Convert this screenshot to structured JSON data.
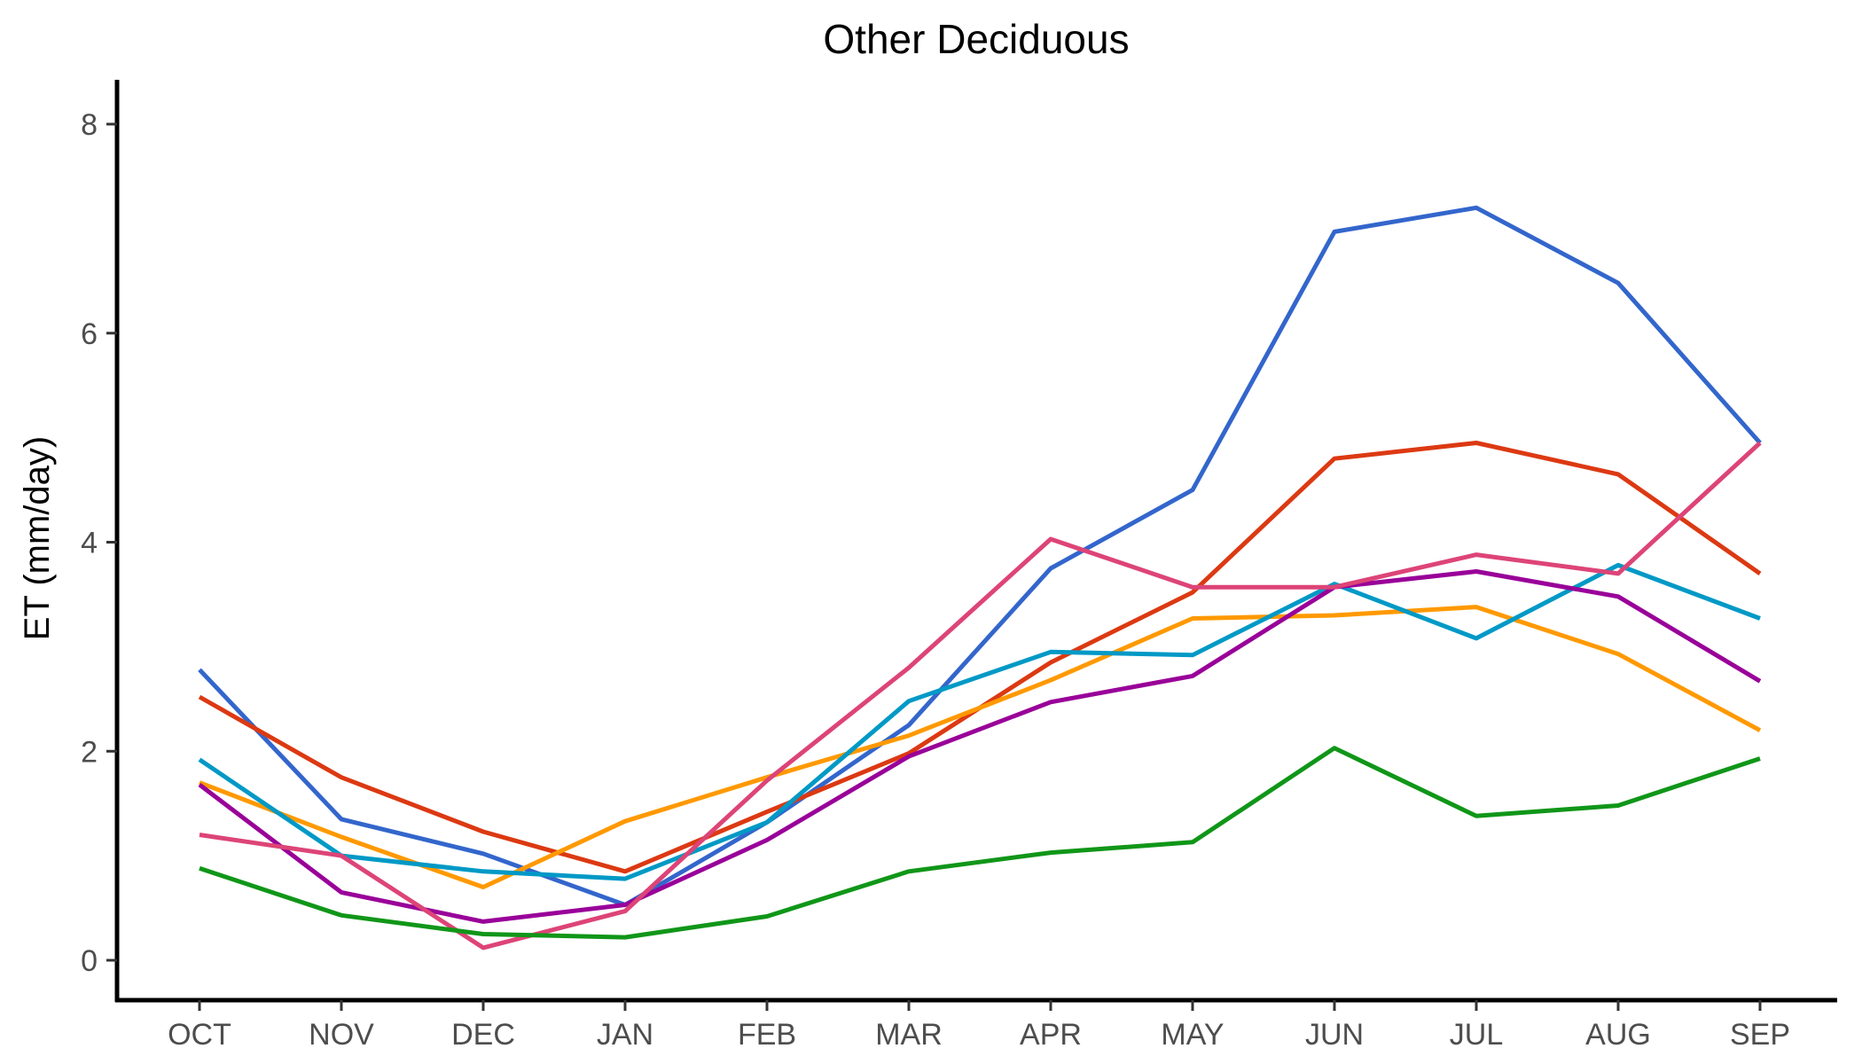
{
  "chart_data": {
    "type": "line",
    "title": "Other Deciduous",
    "xlabel": "",
    "ylabel": "ET (mm/day)",
    "ylim": [
      -0.3,
      8.4
    ],
    "yticks": [
      0,
      2,
      4,
      6,
      8
    ],
    "grid": false,
    "legend": "none",
    "categories": [
      "OCT",
      "NOV",
      "DEC",
      "JAN",
      "FEB",
      "MAR",
      "APR",
      "MAY",
      "JUN",
      "JUL",
      "AUG",
      "SEP"
    ],
    "series": [
      {
        "color": "#3366cc",
        "values": [
          2.78,
          1.35,
          1.02,
          0.53,
          1.32,
          2.25,
          3.75,
          4.5,
          6.97,
          7.2,
          6.48,
          4.95
        ]
      },
      {
        "color": "#dc3912",
        "values": [
          2.52,
          1.75,
          1.23,
          0.85,
          1.42,
          1.98,
          2.85,
          3.52,
          4.8,
          4.95,
          4.65,
          3.7
        ]
      },
      {
        "color": "#ff9900",
        "values": [
          1.7,
          1.18,
          0.7,
          1.33,
          1.75,
          2.15,
          2.68,
          3.27,
          3.3,
          3.38,
          2.93,
          2.2
        ]
      },
      {
        "color": "#0099c6",
        "values": [
          1.92,
          1.0,
          0.85,
          0.78,
          1.32,
          2.48,
          2.95,
          2.92,
          3.6,
          3.08,
          3.78,
          3.27
        ]
      },
      {
        "color": "#990099",
        "values": [
          1.68,
          0.65,
          0.37,
          0.53,
          1.15,
          1.95,
          2.47,
          2.72,
          3.57,
          3.72,
          3.48,
          2.67
        ]
      },
      {
        "color": "#dd4477",
        "values": [
          1.2,
          1.0,
          0.12,
          0.47,
          1.72,
          2.8,
          4.03,
          3.57,
          3.57,
          3.88,
          3.7,
          4.95
        ]
      },
      {
        "color": "#109618",
        "values": [
          0.88,
          0.43,
          0.25,
          0.22,
          0.42,
          0.85,
          1.03,
          1.13,
          2.03,
          1.38,
          1.48,
          1.93
        ]
      }
    ]
  }
}
